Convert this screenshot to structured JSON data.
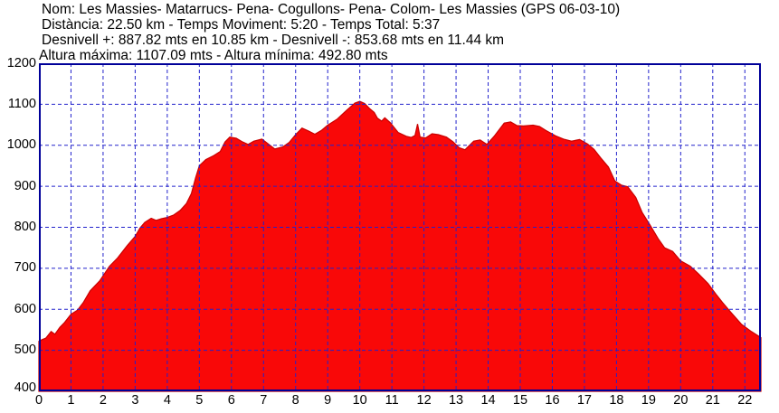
{
  "header": {
    "line1": "Nom: Les Massies- Matarrucs- Pena- Cogullons- Pena- Colom- Les Massies (GPS 06-03-10)",
    "line2": "Distància: 22.50 km - Temps Moviment: 5:20 - Temps Total: 5:37",
    "line3": "Desnivell +: 887.82 mts en 10.85 km - Desnivell -: 853.68 mts en 11.44 km",
    "line4": "Altura máxima: 1107.09 mts - Altura mínima: 492.80 mts"
  },
  "colors": {
    "area_fill": "#f90808",
    "area_edge": "#c80000",
    "grid": "#2222cc",
    "axis_border": "#000099",
    "text": "#000000",
    "background": "#ffffff"
  },
  "chart_data": {
    "type": "area",
    "title": "Elevation profile (Altura mts vs Distància km)",
    "xlabel": "",
    "ylabel": "",
    "xlim": [
      0,
      22.5
    ],
    "ylim": [
      400,
      1200
    ],
    "x_ticks": [
      0,
      1,
      2,
      3,
      4,
      5,
      6,
      7,
      8,
      9,
      10,
      11,
      12,
      13,
      14,
      15,
      16,
      17,
      18,
      19,
      20,
      21,
      22
    ],
    "y_ticks": [
      400,
      500,
      600,
      700,
      800,
      900,
      1000,
      1100,
      1200
    ],
    "grid": true,
    "legend": false,
    "series": [
      {
        "name": "altura",
        "points": [
          [
            0.0,
            522
          ],
          [
            0.1,
            526
          ],
          [
            0.22,
            530
          ],
          [
            0.38,
            546
          ],
          [
            0.5,
            539
          ],
          [
            0.65,
            556
          ],
          [
            0.8,
            568
          ],
          [
            1.0,
            588
          ],
          [
            1.2,
            598
          ],
          [
            1.38,
            616
          ],
          [
            1.6,
            645
          ],
          [
            1.9,
            670
          ],
          [
            2.2,
            705
          ],
          [
            2.45,
            725
          ],
          [
            2.75,
            755
          ],
          [
            3.0,
            778
          ],
          [
            3.15,
            798
          ],
          [
            3.3,
            812
          ],
          [
            3.5,
            822
          ],
          [
            3.65,
            817
          ],
          [
            3.82,
            821
          ],
          [
            4.0,
            824
          ],
          [
            4.2,
            830
          ],
          [
            4.4,
            841
          ],
          [
            4.6,
            858
          ],
          [
            4.75,
            882
          ],
          [
            4.88,
            920
          ],
          [
            5.0,
            950
          ],
          [
            5.2,
            965
          ],
          [
            5.45,
            975
          ],
          [
            5.65,
            985
          ],
          [
            5.8,
            1008
          ],
          [
            5.95,
            1020
          ],
          [
            6.15,
            1017
          ],
          [
            6.35,
            1008
          ],
          [
            6.52,
            1002
          ],
          [
            6.7,
            1010
          ],
          [
            6.95,
            1015
          ],
          [
            7.1,
            1006
          ],
          [
            7.35,
            991
          ],
          [
            7.6,
            996
          ],
          [
            7.8,
            1007
          ],
          [
            8.0,
            1026
          ],
          [
            8.2,
            1042
          ],
          [
            8.4,
            1035
          ],
          [
            8.6,
            1027
          ],
          [
            8.8,
            1036
          ],
          [
            9.0,
            1049
          ],
          [
            9.3,
            1064
          ],
          [
            9.6,
            1086
          ],
          [
            9.85,
            1103
          ],
          [
            10.0,
            1107
          ],
          [
            10.15,
            1102
          ],
          [
            10.3,
            1090
          ],
          [
            10.45,
            1080
          ],
          [
            10.55,
            1066
          ],
          [
            10.68,
            1059
          ],
          [
            10.78,
            1067
          ],
          [
            10.95,
            1055
          ],
          [
            11.2,
            1031
          ],
          [
            11.45,
            1022
          ],
          [
            11.6,
            1019
          ],
          [
            11.72,
            1024
          ],
          [
            11.8,
            1052
          ],
          [
            11.88,
            1020
          ],
          [
            12.05,
            1018
          ],
          [
            12.25,
            1028
          ],
          [
            12.45,
            1026
          ],
          [
            12.7,
            1020
          ],
          [
            12.9,
            1009
          ],
          [
            13.1,
            994
          ],
          [
            13.28,
            989
          ],
          [
            13.55,
            1010
          ],
          [
            13.75,
            1013
          ],
          [
            13.96,
            1002
          ],
          [
            14.2,
            1023
          ],
          [
            14.5,
            1054
          ],
          [
            14.7,
            1057
          ],
          [
            14.9,
            1048
          ],
          [
            15.1,
            1047
          ],
          [
            15.4,
            1049
          ],
          [
            15.6,
            1046
          ],
          [
            15.8,
            1036
          ],
          [
            16.1,
            1023
          ],
          [
            16.35,
            1015
          ],
          [
            16.6,
            1010
          ],
          [
            16.85,
            1014
          ],
          [
            17.1,
            1003
          ],
          [
            17.3,
            990
          ],
          [
            17.5,
            970
          ],
          [
            17.75,
            947
          ],
          [
            17.95,
            913
          ],
          [
            18.15,
            903
          ],
          [
            18.35,
            899
          ],
          [
            18.6,
            873
          ],
          [
            18.8,
            836
          ],
          [
            19.05,
            805
          ],
          [
            19.3,
            772
          ],
          [
            19.5,
            750
          ],
          [
            19.75,
            741
          ],
          [
            20.0,
            718
          ],
          [
            20.3,
            705
          ],
          [
            20.55,
            687
          ],
          [
            20.85,
            663
          ],
          [
            21.1,
            637
          ],
          [
            21.3,
            617
          ],
          [
            21.55,
            594
          ],
          [
            21.9,
            563
          ],
          [
            22.2,
            546
          ],
          [
            22.5,
            531
          ]
        ]
      }
    ]
  }
}
